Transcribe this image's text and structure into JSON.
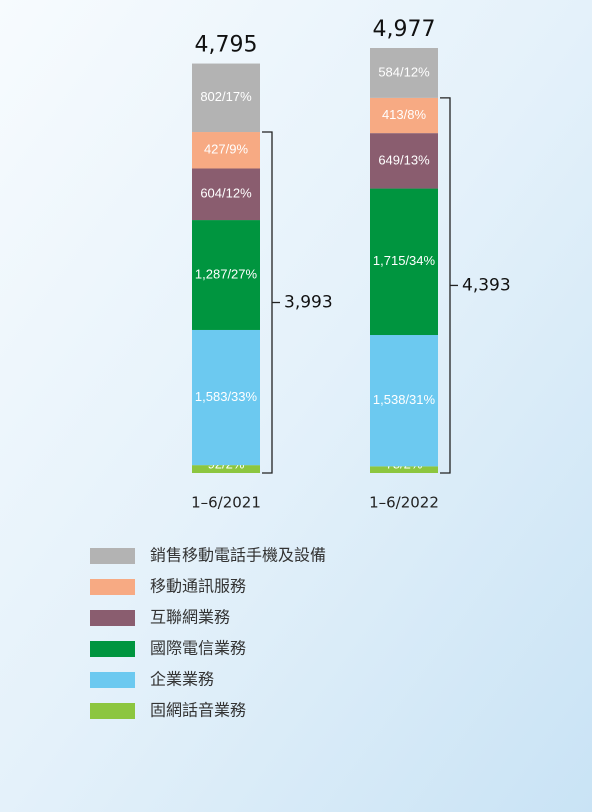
{
  "chart_data": {
    "type": "bar",
    "stacked": true,
    "categories": [
      "1–6/2021",
      "1–6/2022"
    ],
    "series": [
      {
        "name": "固網話音業務",
        "color": "#8cc63f",
        "values": [
          92,
          78
        ],
        "value_labels": [
          "92/2%",
          "78/2%"
        ]
      },
      {
        "name": "企業業務",
        "color": "#6cc9f0",
        "values": [
          1583,
          1538
        ],
        "value_labels": [
          "1,583/33%",
          "1,538/31%"
        ]
      },
      {
        "name": "國際電信業務",
        "color": "#00953f",
        "values": [
          1287,
          1715
        ],
        "value_labels": [
          "1,287/27%",
          "1,715/34%"
        ]
      },
      {
        "name": "互聯網業務",
        "color": "#8a5d6f",
        "values": [
          604,
          649
        ],
        "value_labels": [
          "604/12%",
          "649/13%"
        ]
      },
      {
        "name": "移動通訊服務",
        "color": "#f7aa83",
        "values": [
          427,
          413
        ],
        "value_labels": [
          "427/9%",
          "413/8%"
        ]
      },
      {
        "name": "銷售移動電話手機及設備",
        "color": "#b3b3b3",
        "values": [
          802,
          584
        ],
        "value_labels": [
          "802/17%",
          "584/12%"
        ]
      }
    ],
    "totals": [
      {
        "value": 4795,
        "label": "4,795"
      },
      {
        "value": 4977,
        "label": "4,977"
      }
    ],
    "bracket_totals": [
      {
        "value": 3993,
        "label": "3,993"
      },
      {
        "value": 4393,
        "label": "4,393"
      }
    ]
  }
}
